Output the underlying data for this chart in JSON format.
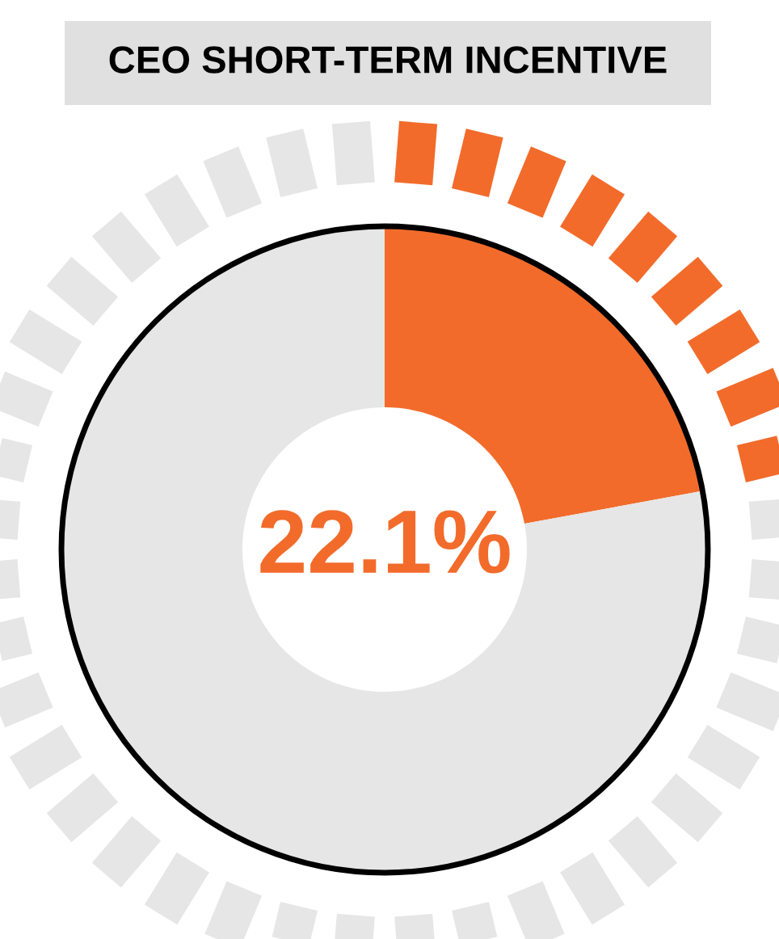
{
  "chart_data": {
    "type": "donut",
    "title": "CEO SHORT-TERM INCENTIVE",
    "categories": [
      null,
      null
    ],
    "values": [
      22.1,
      77.9
    ],
    "colors": [
      "#f26b2b",
      "#e6e6e6"
    ],
    "value_labels": [
      "22.1%",
      null
    ]
  }
}
